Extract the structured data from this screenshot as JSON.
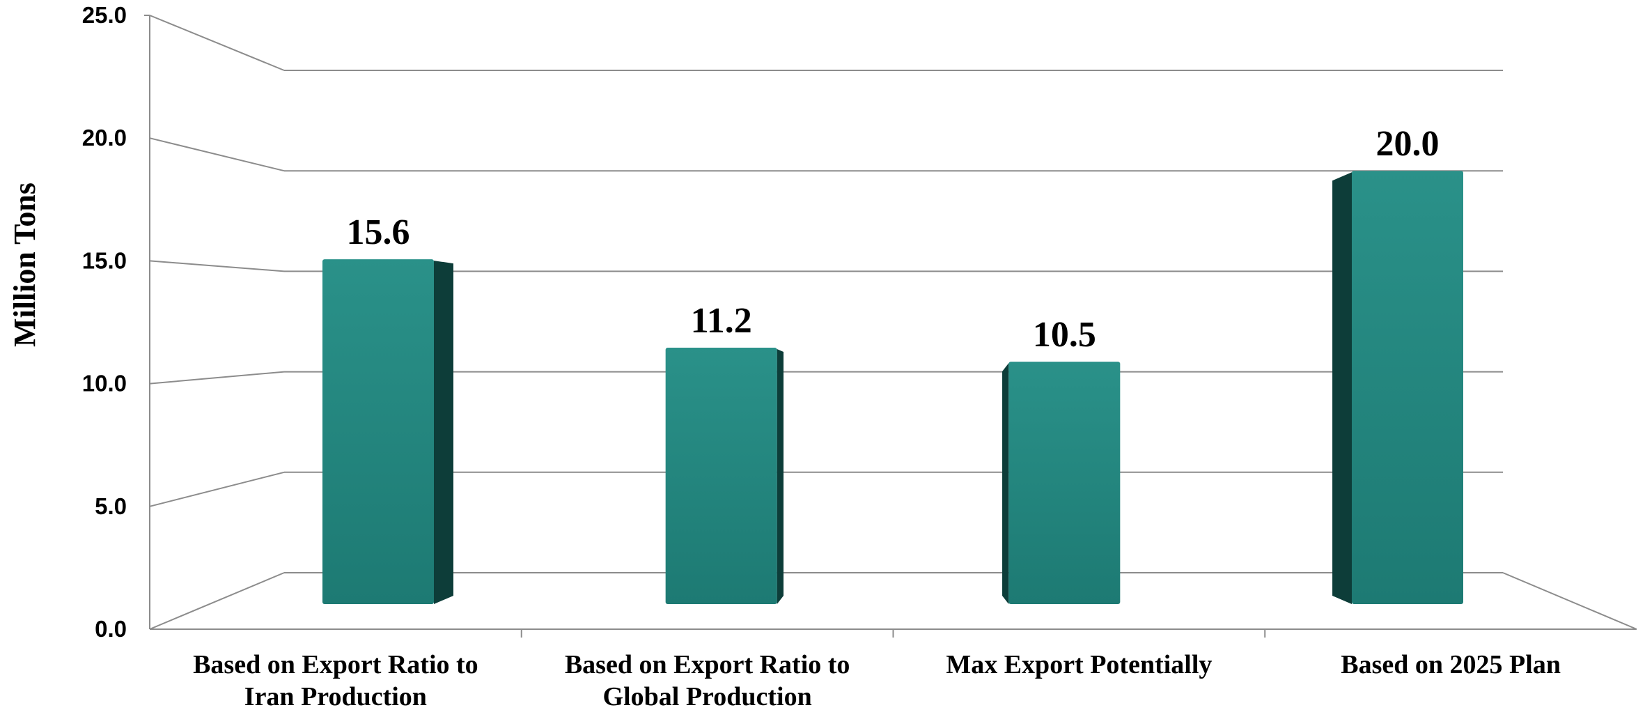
{
  "chart_data": {
    "type": "bar",
    "ylabel": "Million Tons",
    "ylim": [
      0,
      25
    ],
    "yticks": [
      0,
      5,
      10,
      15,
      20,
      25
    ],
    "ytick_labels": [
      "0.0",
      "5.0",
      "10.0",
      "15.0",
      "20.0",
      "25.0"
    ],
    "categories": [
      [
        "Based on Export Ratio to",
        "Iran Production"
      ],
      [
        "Based on Export Ratio to",
        "Global Production"
      ],
      [
        "Max Export Potentially"
      ],
      [
        "Based on 2025 Plan"
      ]
    ],
    "values": [
      15.6,
      11.2,
      10.5,
      20.0
    ],
    "data_labels": [
      "15.6",
      "11.2",
      "10.5",
      "20.0"
    ],
    "grid": true,
    "style": "3d-column",
    "colors": {
      "bar": "#1f7f78",
      "bar_side": "#0d3d39",
      "grid": "#8c8c8c"
    }
  }
}
